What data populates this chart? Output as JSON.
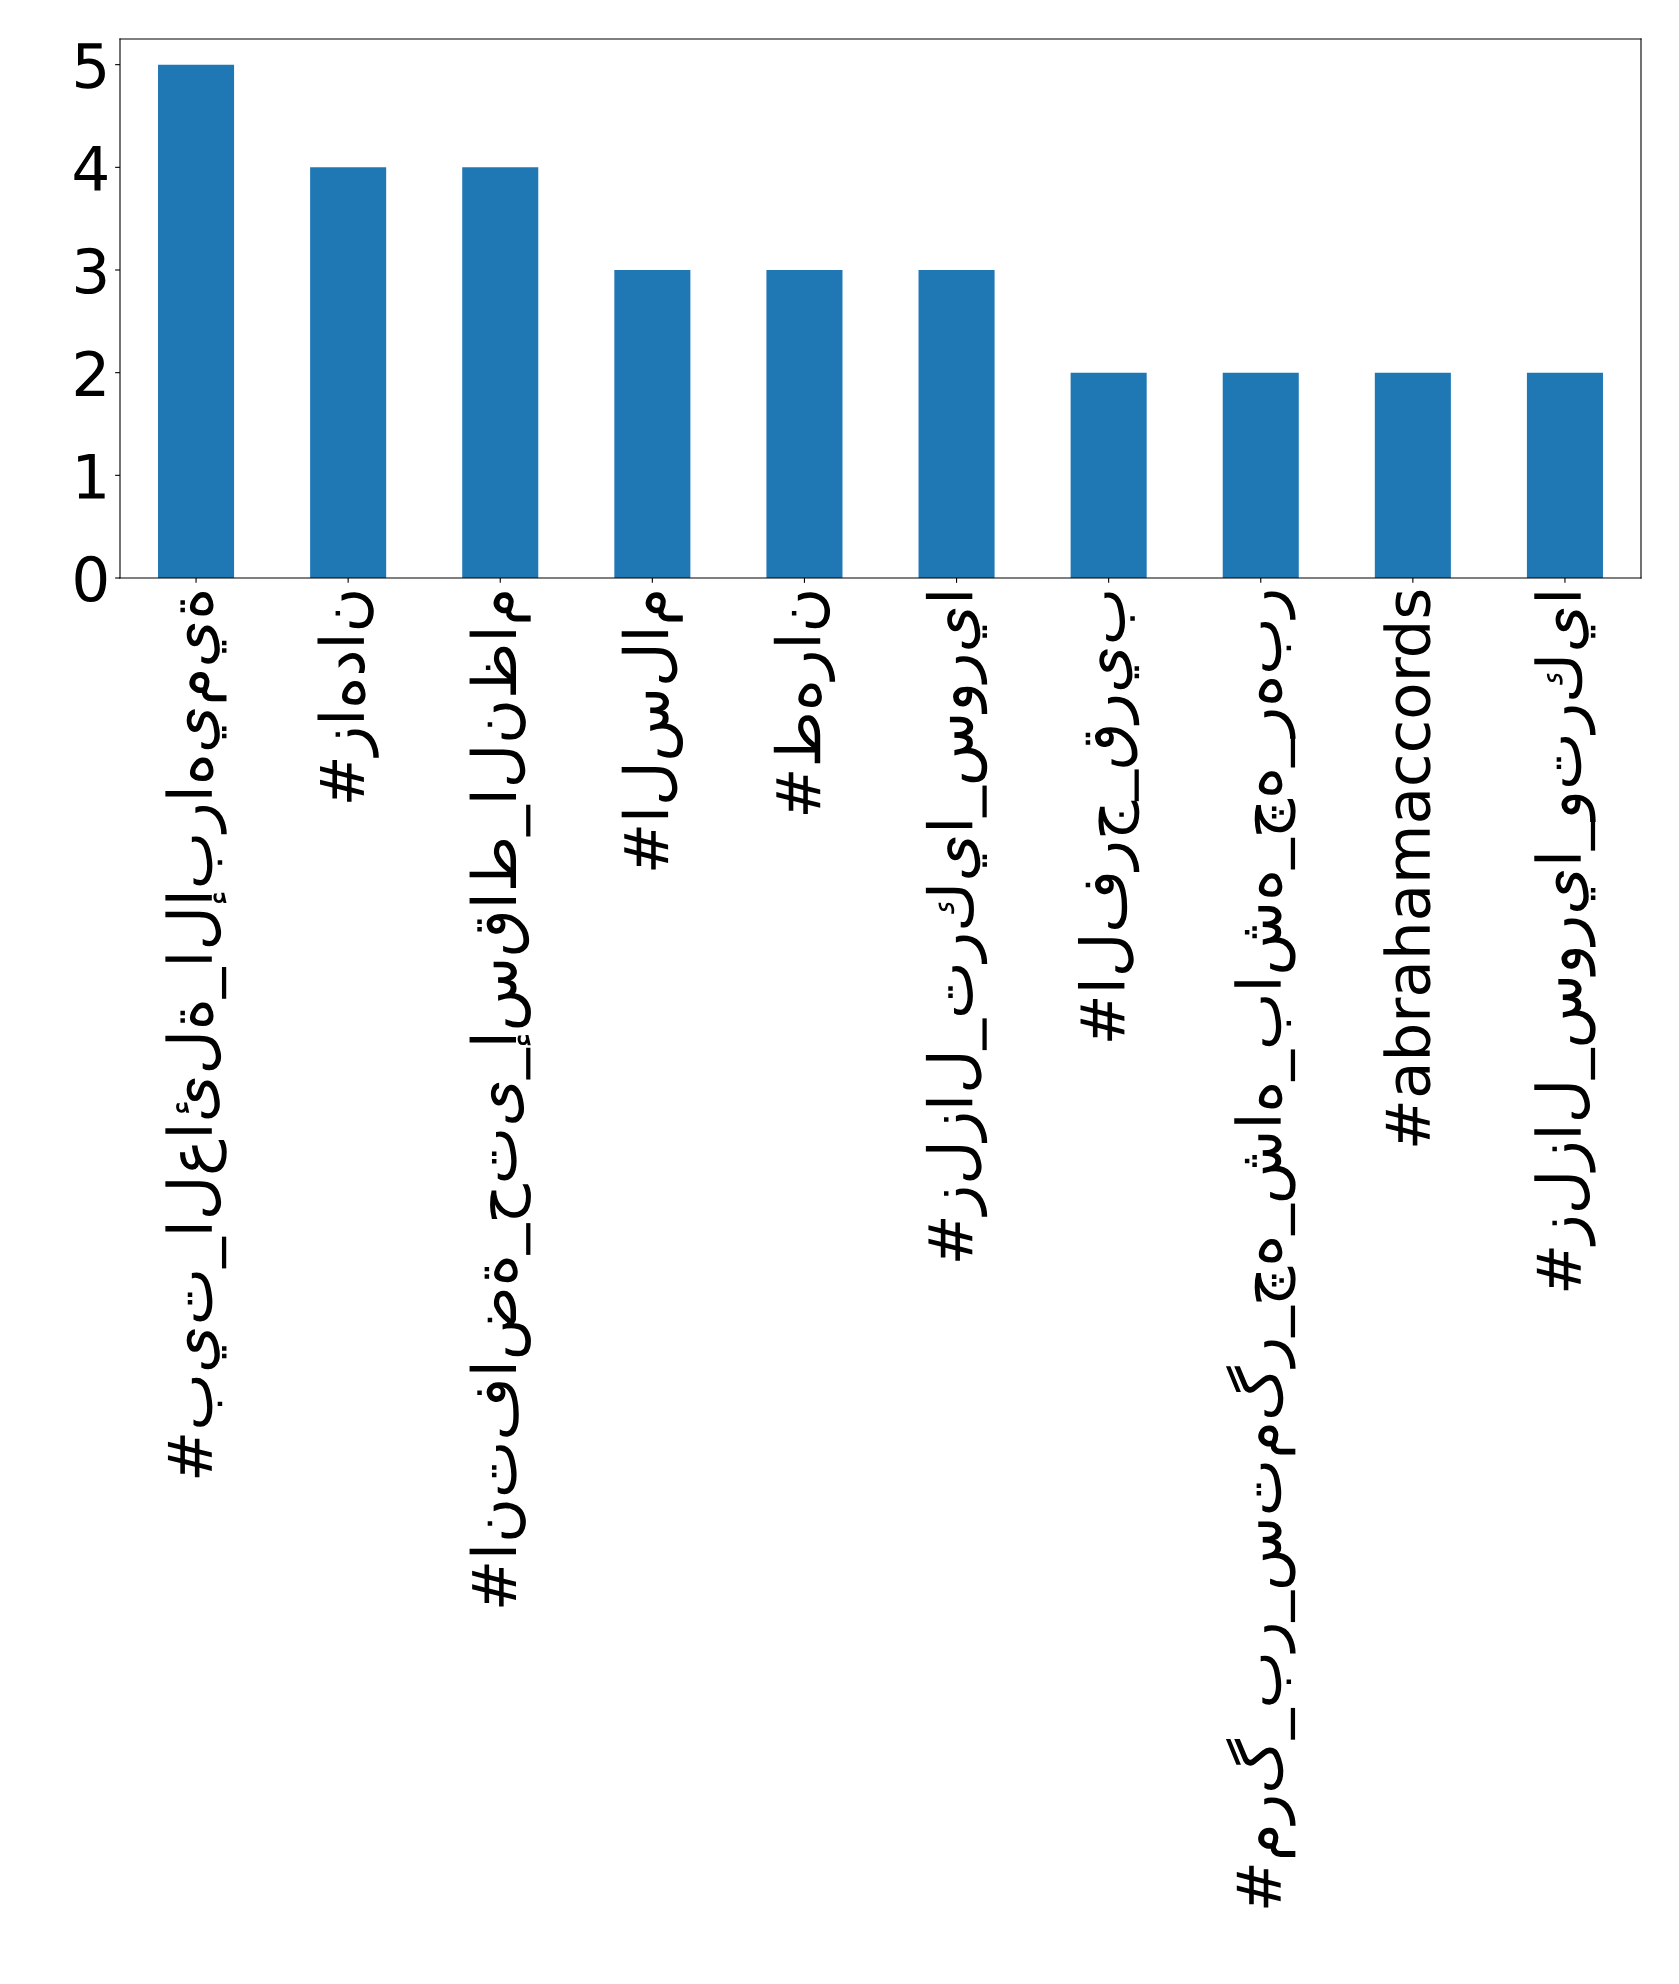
{
  "chart_data": {
    "type": "bar",
    "categories": [
      "#بيت_العائلة_الإبراهيمية",
      "#زاهدان",
      "#انتفاضة_حتى_إسقاط_النظام",
      "#السلام",
      "#طهران",
      "#زلزال_تركيا_سوريا",
      "#الفرج_قريب",
      "#مرگ_بر_ستمگر_چه_شاه_باشه_چه_رهبر",
      "#abrahamaccords",
      "#زلزال_سوريا_وتركيا"
    ],
    "values": [
      5,
      4,
      4,
      3,
      3,
      3,
      2,
      2,
      2,
      2
    ],
    "color": "#1f77b4",
    "ylim": [
      0,
      5.25
    ],
    "yticks": [
      0,
      1,
      2,
      3,
      4,
      5
    ],
    "grid": false,
    "legend": false
  }
}
